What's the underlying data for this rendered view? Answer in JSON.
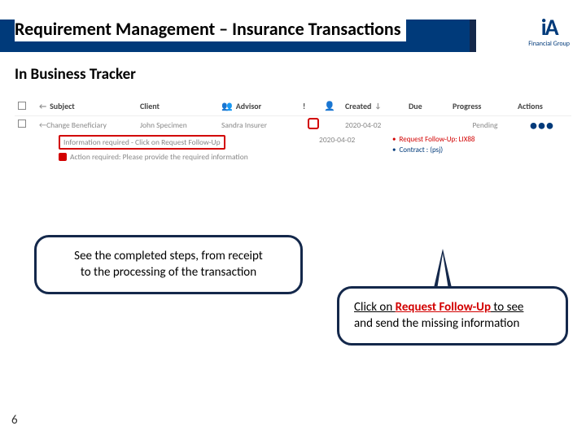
{
  "title": "Requirement Management – Insurance Transactions",
  "subtitle": "In Business Tracker",
  "logo": {
    "text": "iA",
    "sub": "Financial Group"
  },
  "table": {
    "headers": {
      "subject": "Subject",
      "client": "Client",
      "advisor": "Advisor",
      "priority": "!",
      "created": "Created",
      "due": "Due",
      "progress": "Progress",
      "actions": "Actions"
    },
    "row": {
      "subject": "Change Beneficiary",
      "client": "John Specimen",
      "advisor": "Sandra Insurer",
      "created": "2020-04-02",
      "progress": "Pending"
    },
    "expand": {
      "info": "Information required - Click on Request Follow-Up",
      "action": "Action required: Please provide the required information",
      "date": "2020-04-02",
      "link1": "Request Follow-Up: ",
      "link1_code": "LIX88",
      "link2": "Contract : ",
      "link2_code": "(psj)"
    }
  },
  "callout1": {
    "line1": "See the completed steps, from receipt",
    "line2": "to the processing of the transaction"
  },
  "callout2": {
    "pre": "Click on ",
    "link": "Request Follow-Up",
    "post1": " to see",
    "post2": "and send the missing information"
  },
  "page_number": "6",
  "colors": {
    "brand_blue": "#003a7a",
    "dark_navy": "#14284b",
    "alert_red": "#d20000"
  }
}
